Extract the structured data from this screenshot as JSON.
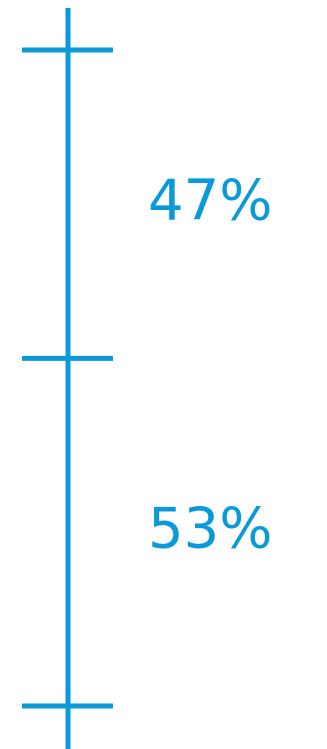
{
  "chart_data": {
    "type": "bar",
    "orientation": "vertical-stacked",
    "categories": [
      "",
      ""
    ],
    "values": [
      47,
      53
    ],
    "labels": [
      "47%",
      "53%"
    ],
    "title": "",
    "xlabel": "",
    "ylabel": "",
    "ylim": [
      0,
      100
    ],
    "grid": false,
    "legend": "none"
  },
  "colors": {
    "accent": "#0a9ad9",
    "background": "#ffffff"
  }
}
